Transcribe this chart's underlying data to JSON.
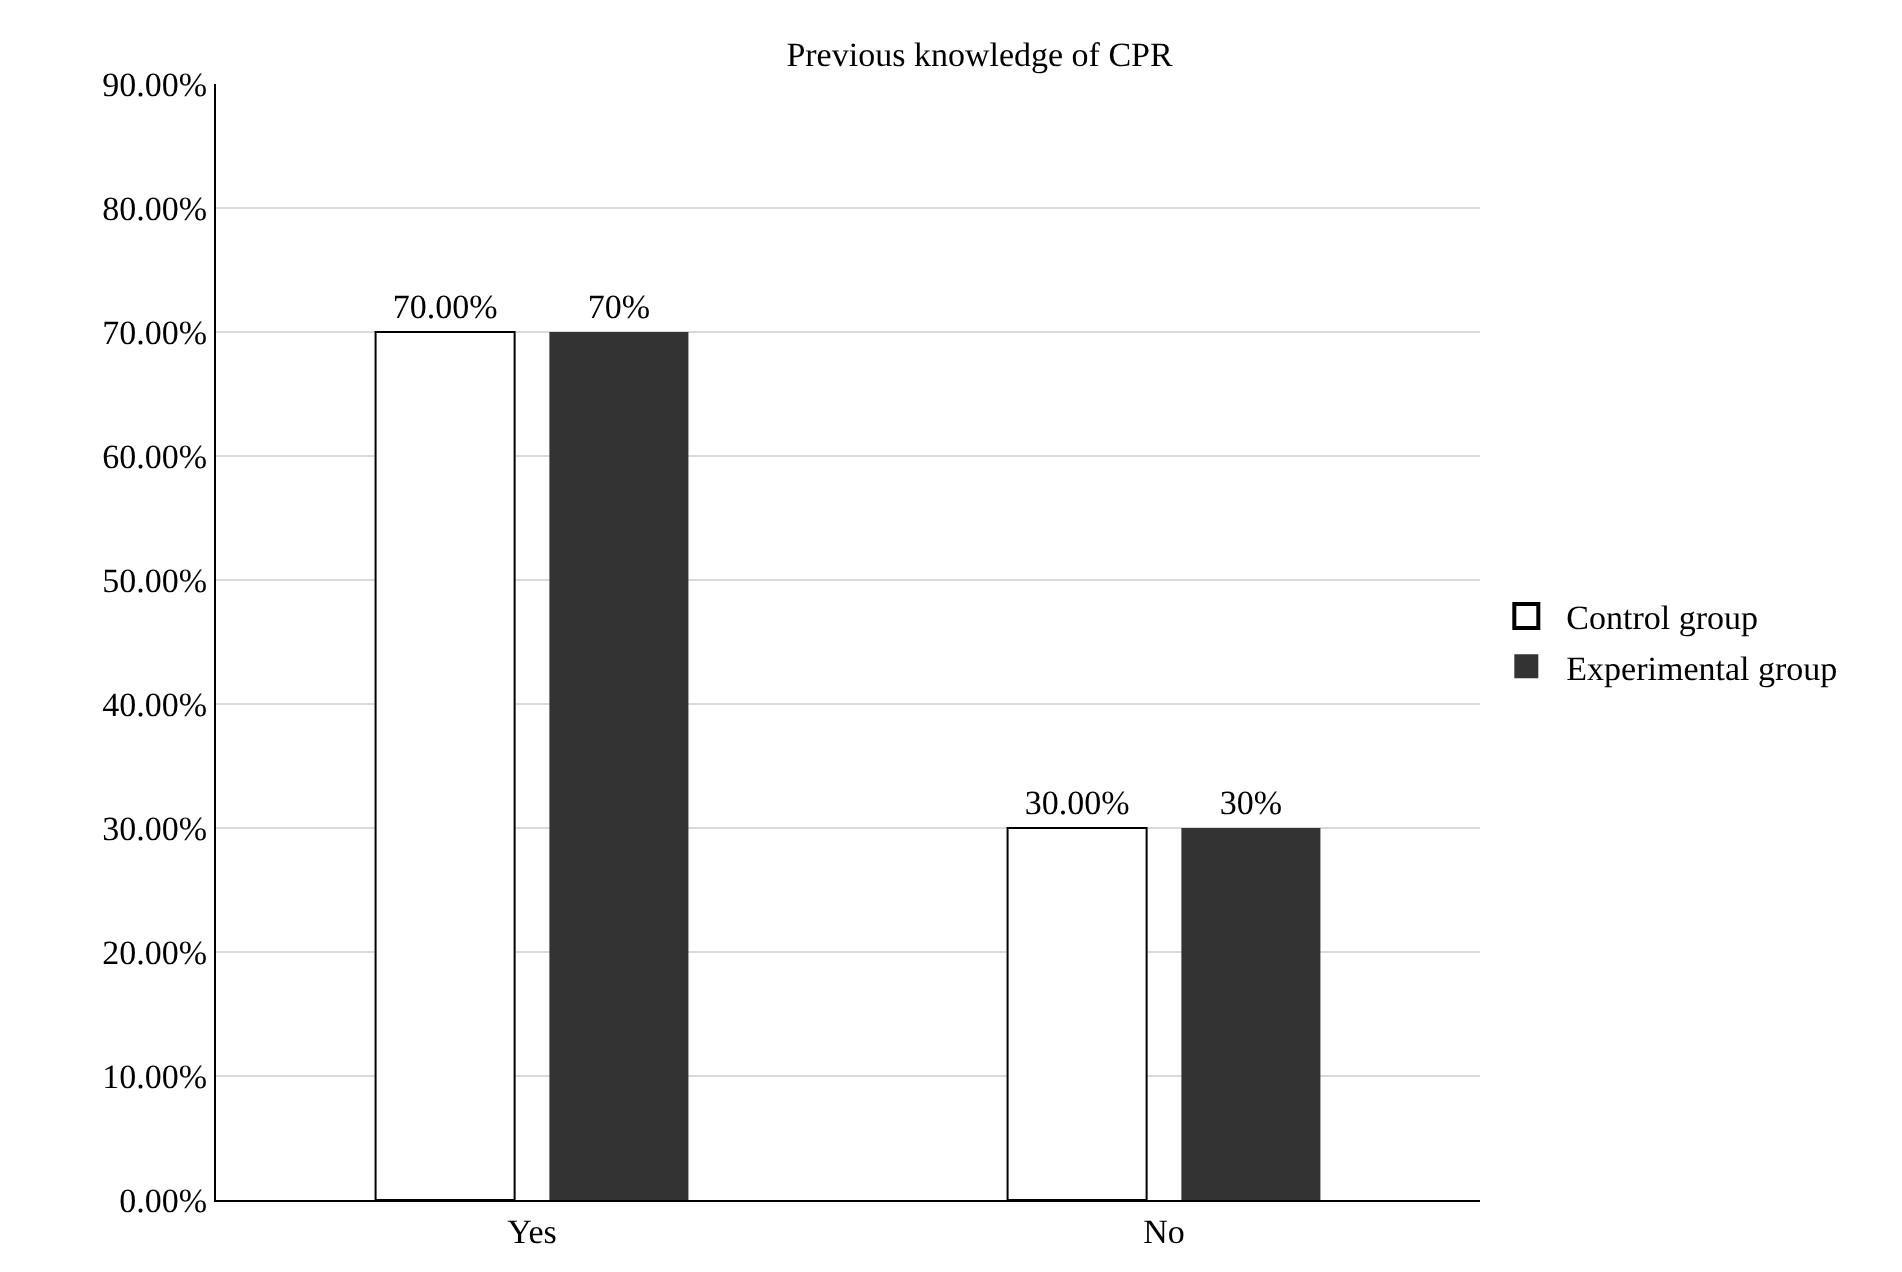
{
  "chart_data": {
    "type": "bar",
    "title": "Previous knowledge of CPR",
    "categories": [
      "Yes",
      "No"
    ],
    "series": [
      {
        "name": "Control group",
        "color": "#ffffff",
        "values": [
          70,
          30
        ],
        "value_labels": [
          "70.00%",
          "30.00%"
        ]
      },
      {
        "name": "Experimental group",
        "color": "#333333",
        "values": [
          70,
          30
        ],
        "value_labels": [
          "70%",
          "30%"
        ]
      }
    ],
    "ylim": [
      0,
      90
    ],
    "yticks": [
      {
        "value": 0,
        "label": "0.00%"
      },
      {
        "value": 10,
        "label": "10.00%"
      },
      {
        "value": 20,
        "label": "20.00%"
      },
      {
        "value": 30,
        "label": "30.00%"
      },
      {
        "value": 40,
        "label": "40.00%"
      },
      {
        "value": 50,
        "label": "50.00%"
      },
      {
        "value": 60,
        "label": "60.00%"
      },
      {
        "value": 70,
        "label": "70.00%"
      },
      {
        "value": 80,
        "label": "80.00%"
      },
      {
        "value": 90,
        "label": "90.00%"
      }
    ],
    "grid": "y",
    "legend": "right"
  }
}
